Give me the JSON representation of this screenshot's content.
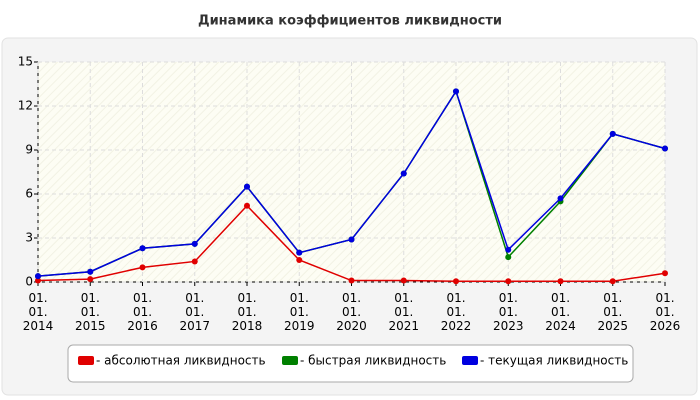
{
  "chart_data": {
    "type": "line",
    "title": "Динамика коэффициентов ликвидности",
    "categories": [
      "01.01.2014",
      "01.01.2015",
      "01.01.2016",
      "01.01.2017",
      "01.01.2018",
      "01.01.2019",
      "01.01.2020",
      "01.01.2021",
      "01.01.2022",
      "01.01.2023",
      "01.01.2024",
      "01.01.2025",
      "01.01.2026"
    ],
    "series": [
      {
        "name": "- абсолютная ликвидность",
        "color": "#e00000",
        "values": [
          0.1,
          0.2,
          1.0,
          1.4,
          5.2,
          1.5,
          0.1,
          0.1,
          0.05,
          0.05,
          0.05,
          0.05,
          0.6
        ]
      },
      {
        "name": "- быстрая ликвидность",
        "color": "#008000",
        "values": [
          0.4,
          0.7,
          2.3,
          2.6,
          6.5,
          2.0,
          2.9,
          7.4,
          13.0,
          1.7,
          5.5,
          10.1,
          9.1
        ]
      },
      {
        "name": "- текущая ликвидность",
        "color": "#0000e0",
        "values": [
          0.4,
          0.7,
          2.3,
          2.6,
          6.5,
          2.0,
          2.9,
          7.4,
          13.0,
          2.2,
          5.7,
          10.1,
          9.1
        ]
      }
    ],
    "ylim": [
      0,
      15
    ],
    "yticks": [
      0,
      3,
      6,
      9,
      12,
      15
    ],
    "grid": true
  }
}
